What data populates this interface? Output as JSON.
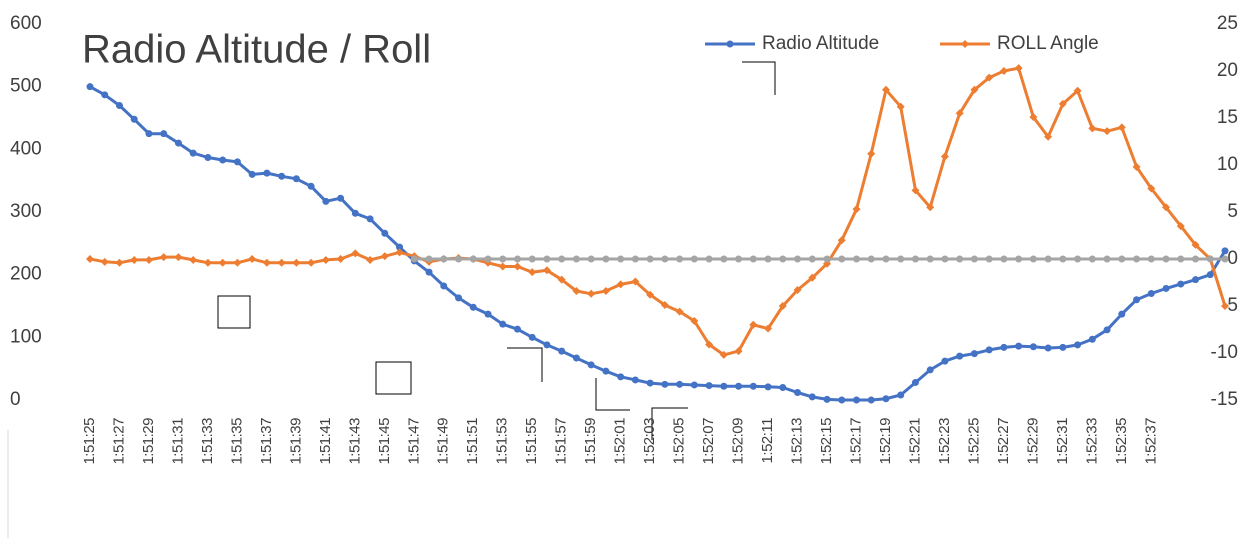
{
  "chart_data": {
    "type": "line",
    "title": "Radio Altitude / Roll",
    "categories": [
      "1:51:25",
      null,
      "1:51:27",
      null,
      "1:51:29",
      null,
      "1:51:31",
      null,
      "1:51:33",
      null,
      "1:51:35",
      null,
      "1:51:37",
      null,
      "1:51:39",
      null,
      "1:51:41",
      null,
      "1:51:43",
      null,
      "1:51:45",
      null,
      "1:51:47",
      null,
      "1:51:49",
      null,
      "1:51:51",
      null,
      "1:51:53",
      null,
      "1:51:55",
      null,
      "1:51:57",
      null,
      "1:51:59",
      null,
      "1:52:01",
      null,
      "1:52:03",
      null,
      "1:52:05",
      null,
      "1:52:07",
      null,
      "1:52:09",
      null,
      "1:52:11",
      null,
      "1:52:13",
      null,
      "1:52:15",
      null,
      "1:52:17",
      null,
      "1:52:19",
      null,
      "1:52:21",
      null,
      "1:52:23",
      null,
      "1:52:25",
      null,
      "1:52:27",
      null,
      "1:52:29",
      null,
      "1:52:31",
      null,
      "1:52:33",
      null,
      "1:52:35",
      null,
      "1:52:37",
      null,
      null,
      null,
      null,
      null
    ],
    "series": [
      {
        "name": "Radio Altitude",
        "color": "#4472c4",
        "marker": "circle",
        "values": [
          500,
          487,
          470,
          448,
          425,
          425,
          410,
          394,
          387,
          383,
          380,
          360,
          362,
          357,
          353,
          341,
          317,
          322,
          298,
          289,
          266,
          244,
          222,
          204,
          182,
          163,
          148,
          137,
          121,
          113,
          100,
          88,
          78,
          67,
          56,
          46,
          37,
          32,
          27,
          25,
          25,
          24,
          23,
          22,
          22,
          22,
          21,
          20,
          12,
          5,
          1,
          0,
          0,
          0,
          2,
          8,
          28,
          48,
          62,
          70,
          74,
          80,
          84,
          86,
          85,
          83,
          84,
          88,
          97,
          112,
          137,
          160,
          170,
          178,
          185,
          192,
          200,
          238
        ]
      },
      {
        "name": "ROLL Angle",
        "color": "#ed7d31",
        "marker": "diamond",
        "axis": "y2",
        "values": [
          0,
          -0.3,
          -0.4,
          -0.1,
          -0.1,
          0.2,
          0.2,
          -0.1,
          -0.4,
          -0.4,
          -0.4,
          0,
          -0.4,
          -0.4,
          -0.4,
          -0.4,
          -0.1,
          0,
          0.6,
          -0.1,
          0.3,
          0.7,
          0.3,
          -0.3,
          0,
          0.1,
          0,
          -0.4,
          -0.8,
          -0.8,
          -1.4,
          -1.2,
          -2.2,
          -3.4,
          -3.7,
          -3.4,
          -2.7,
          -2.4,
          -3.8,
          -4.9,
          -5.6,
          -6.6,
          -9.1,
          -10.2,
          -9.8,
          -7,
          -7.4,
          -5,
          -3.3,
          -2,
          -0.5,
          2,
          5.3,
          11.2,
          18,
          16.2,
          7.3,
          5.5,
          10.9,
          15.5,
          18,
          19.3,
          20,
          20.3,
          15.1,
          13,
          16.5,
          17.9,
          13.9,
          13.6,
          14,
          9.8,
          7.5,
          5.5,
          3.5,
          1.5,
          0,
          -5
        ]
      },
      {
        "color": "#a5a5a5",
        "marker": "circle",
        "axis": "y2",
        "values": [
          null,
          null,
          null,
          null,
          null,
          null,
          null,
          null,
          null,
          null,
          null,
          null,
          null,
          null,
          null,
          null,
          null,
          null,
          null,
          null,
          null,
          null,
          0,
          0,
          0,
          0,
          0,
          0,
          0,
          0,
          0,
          0,
          0,
          0,
          0,
          0,
          0,
          0,
          0,
          0,
          0,
          0,
          0,
          0,
          0,
          0,
          0,
          0,
          0,
          0,
          0,
          0,
          0,
          0,
          0,
          0,
          0,
          0,
          0,
          0,
          0,
          0,
          0,
          0,
          0,
          0,
          0,
          0,
          0,
          0,
          0,
          0,
          0,
          0,
          0,
          0,
          0,
          0
        ]
      }
    ],
    "ylim": [
      0,
      600
    ],
    "yticks": [
      0,
      100,
      200,
      300,
      400,
      500,
      600
    ],
    "y2lim": [
      -15,
      25
    ],
    "y2ticks": [
      -15,
      -10,
      -5,
      0,
      5,
      10,
      15,
      20,
      25
    ],
    "grid": false,
    "legend": "top"
  }
}
